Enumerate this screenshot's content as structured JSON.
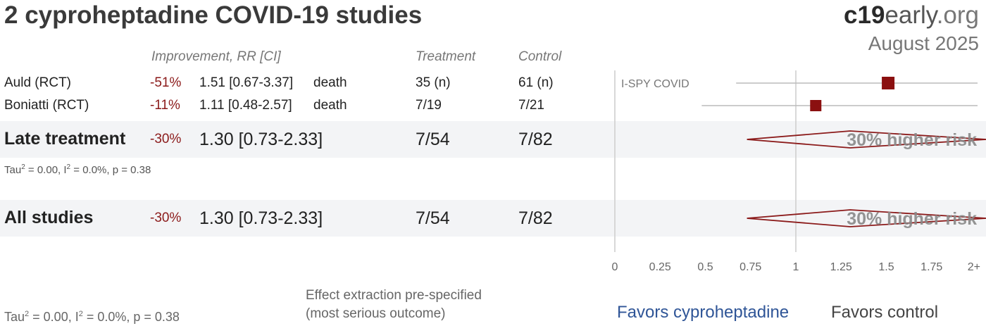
{
  "title": "2 cyproheptadine COVID-19 studies",
  "brand": {
    "bold": "c19",
    "light": "early",
    "tld": ".org"
  },
  "date": "August 2025",
  "headers": {
    "improvement": "Improvement, RR [CI]",
    "treatment": "Treatment",
    "control": "Control"
  },
  "studies": [
    {
      "name": "Auld (RCT)",
      "improvement": "-51%",
      "rr": "1.51 [0.67-3.37]",
      "outcome": "death",
      "treatment": "35 (n)",
      "control": "61 (n)",
      "label": "I-SPY COVID"
    },
    {
      "name": "Boniatti (RCT)",
      "improvement": "-11%",
      "rr": "1.11 [0.48-2.57]",
      "outcome": "death",
      "treatment": "7/19",
      "control": "7/21",
      "label": ""
    }
  ],
  "groups": [
    {
      "name": "Late treatment",
      "improvement": "-30%",
      "rr": "1.30 [0.73-2.33]",
      "treatment": "7/54",
      "control": "7/82",
      "stat": {
        "tau": "Tau",
        "rest": " = 0.00, I",
        "rest2": " = 0.0%, p = 0.38"
      },
      "risk_label": "30% higher risk"
    },
    {
      "name": "All studies",
      "improvement": "-30%",
      "rr": "1.30 [0.73-2.33]",
      "treatment": "7/54",
      "control": "7/82",
      "risk_label": "30% higher risk"
    }
  ],
  "footer": {
    "stat_tau": "Tau",
    "stat_rest": " = 0.00, I",
    "stat_rest2": " = 0.0%, p = 0.38",
    "note1": "Effect extraction pre-specified",
    "note2": "(most serious outcome)",
    "favors_left": "Favors cyproheptadine",
    "favors_right": "Favors control"
  },
  "chart_data": {
    "type": "forest",
    "x_axis": {
      "ticks": [
        "0",
        "0.25",
        "0.5",
        "0.75",
        "1",
        "1.25",
        "1.5",
        "1.75",
        "2+"
      ],
      "range": [
        0,
        2
      ]
    },
    "studies": [
      {
        "name": "Auld (RCT)",
        "rr": 1.51,
        "lo": 0.67,
        "hi": 3.37
      },
      {
        "name": "Boniatti (RCT)",
        "rr": 1.11,
        "lo": 0.48,
        "hi": 2.57
      }
    ],
    "pooled": [
      {
        "name": "Late treatment",
        "rr": 1.3,
        "lo": 0.73,
        "hi": 2.33
      },
      {
        "name": "All studies",
        "rr": 1.3,
        "lo": 0.73,
        "hi": 2.33
      }
    ],
    "colors": {
      "marker": "#8b1010",
      "diamond": "#8b1a1a",
      "reference": "#cccccc"
    }
  }
}
